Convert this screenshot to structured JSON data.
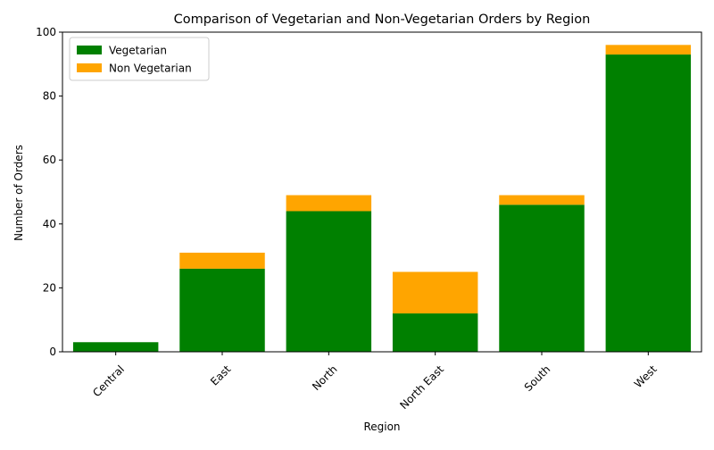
{
  "chart_data": {
    "type": "bar",
    "stacked": true,
    "title": "Comparison of Vegetarian and Non-Vegetarian Orders by Region",
    "xlabel": "Region",
    "ylabel": "Number of Orders",
    "categories": [
      "Central",
      "East",
      "North",
      "North East",
      "South",
      "West"
    ],
    "series": [
      {
        "name": "Vegetarian",
        "values": [
          3,
          26,
          44,
          12,
          46,
          93
        ],
        "color": "#008000"
      },
      {
        "name": "Non Vegetarian",
        "values": [
          0,
          5,
          5,
          13,
          3,
          3
        ],
        "color": "#ffa500"
      }
    ],
    "ylim": [
      0,
      100
    ],
    "yticks": [
      0,
      20,
      40,
      60,
      80,
      100
    ],
    "grid": false,
    "legend_position": "top-left"
  }
}
